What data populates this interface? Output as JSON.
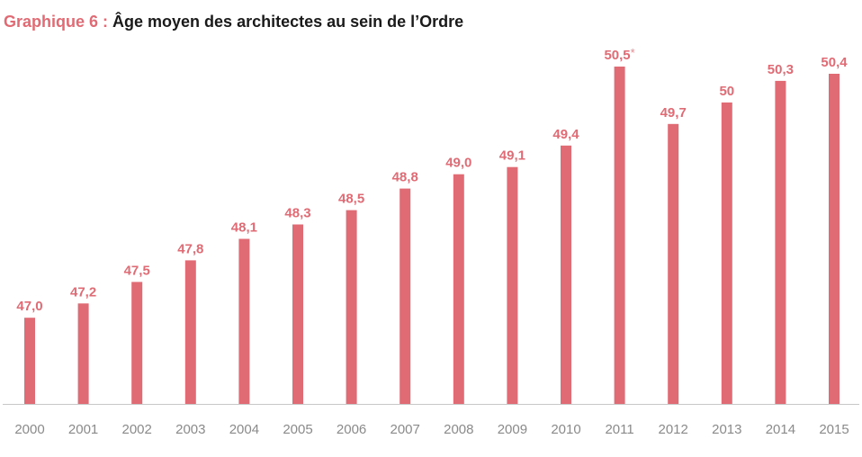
{
  "title_prefix": "Graphique 6 :",
  "title_main": "Âge moyen des architectes au sein de l’Ordre",
  "colors": {
    "accent": "#e06b74",
    "axis": "#c8c8c8",
    "tick": "#8a8a8a"
  },
  "chart_data": {
    "type": "bar",
    "title": "Graphique 6 : Âge moyen des architectes au sein de l’Ordre",
    "xlabel": "",
    "ylabel": "",
    "categories": [
      "2000",
      "2001",
      "2002",
      "2003",
      "2004",
      "2005",
      "2006",
      "2007",
      "2008",
      "2009",
      "2010",
      "2011",
      "2012",
      "2013",
      "2014",
      "2015"
    ],
    "values": [
      47.0,
      47.2,
      47.5,
      47.8,
      48.1,
      48.3,
      48.5,
      48.8,
      49.0,
      49.1,
      49.4,
      50.5,
      49.7,
      50.0,
      50.3,
      50.4
    ],
    "value_labels": [
      "47,0",
      "47,2",
      "47,5",
      "47,8",
      "48,1",
      "48,3",
      "48,5",
      "48,8",
      "49,0",
      "49,1",
      "49,4",
      "50,5",
      "49,7",
      "50",
      "50,3",
      "50,4"
    ],
    "annotations": [
      {
        "category": "2011",
        "text": "*"
      }
    ],
    "ylim": [
      45.8,
      50.6
    ],
    "grid": false,
    "legend": "none"
  }
}
